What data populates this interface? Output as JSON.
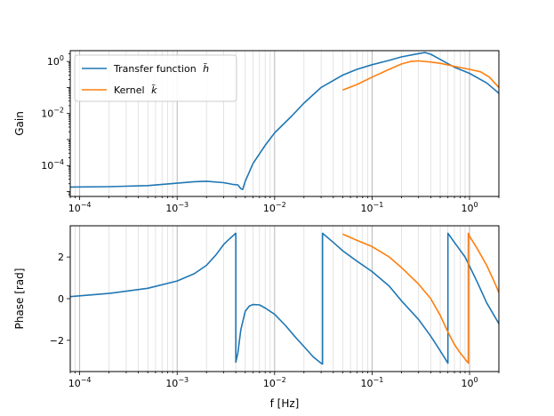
{
  "chart_data": [
    {
      "type": "line",
      "title": "",
      "xlabel": "",
      "ylabel": "Gain",
      "xscale": "log",
      "yscale": "log",
      "xlim": [
        8e-05,
        2.0
      ],
      "ylim": [
        6.5e-06,
        2.6
      ],
      "xticks": [
        {
          "value": 0.0001,
          "label": "10",
          "exp": "−4"
        },
        {
          "value": 0.001,
          "label": "10",
          "exp": "−3"
        },
        {
          "value": 0.01,
          "label": "10",
          "exp": "−2"
        },
        {
          "value": 0.1,
          "label": "10",
          "exp": "−1"
        },
        {
          "value": 1,
          "label": "10",
          "exp": "0"
        }
      ],
      "yticks": [
        {
          "value": 0.0001,
          "label": "10",
          "exp": "−4"
        },
        {
          "value": 0.01,
          "label": "10",
          "exp": "−2"
        },
        {
          "value": 1,
          "label": "10",
          "exp": "0"
        }
      ],
      "grid": "x-minor-and-major",
      "legend_position": "upper-left",
      "legend": [
        {
          "label": "Transfer function",
          "symbol": "h̃"
        },
        {
          "label": "Kernel",
          "symbol": "k̃"
        }
      ],
      "series": [
        {
          "name": "Transfer function h̃",
          "color": "#1f77b4",
          "x": [
            8e-05,
            0.0002,
            0.0005,
            0.001,
            0.0015,
            0.002,
            0.003,
            0.0037,
            0.0042,
            0.0045,
            0.0047,
            0.005,
            0.006,
            0.008,
            0.01,
            0.015,
            0.02,
            0.03,
            0.05,
            0.07,
            0.1,
            0.15,
            0.2,
            0.3,
            0.35,
            0.4,
            0.5,
            0.7,
            1.0,
            1.5,
            2.0
          ],
          "y": [
            1.5e-05,
            1.55e-05,
            1.7e-05,
            2.1e-05,
            2.4e-05,
            2.5e-05,
            2.2e-05,
            1.9e-05,
            1.8e-05,
            1.3e-05,
            1.2e-05,
            2.5e-05,
            0.00012,
            0.0006,
            0.0018,
            0.008,
            0.025,
            0.1,
            0.3,
            0.5,
            0.75,
            1.1,
            1.5,
            2.0,
            2.2,
            1.9,
            1.2,
            0.6,
            0.35,
            0.15,
            0.06
          ]
        },
        {
          "name": "Kernel k̃",
          "color": "#ff7f0e",
          "x": [
            0.05,
            0.07,
            0.1,
            0.15,
            0.2,
            0.25,
            0.3,
            0.4,
            0.5,
            0.7,
            1.0,
            1.3,
            1.6,
            2.0
          ],
          "y": [
            0.08,
            0.13,
            0.25,
            0.5,
            0.8,
            1.0,
            1.05,
            0.95,
            0.85,
            0.65,
            0.5,
            0.4,
            0.25,
            0.1
          ]
        }
      ]
    },
    {
      "type": "line",
      "title": "",
      "xlabel": "f [Hz]",
      "ylabel": "Phase [rad]",
      "xscale": "log",
      "yscale": "linear",
      "xlim": [
        8e-05,
        2.0
      ],
      "ylim": [
        -3.5,
        3.5
      ],
      "xticks": [
        {
          "value": 0.0001,
          "label": "10",
          "exp": "−4"
        },
        {
          "value": 0.001,
          "label": "10",
          "exp": "−3"
        },
        {
          "value": 0.01,
          "label": "10",
          "exp": "−2"
        },
        {
          "value": 0.1,
          "label": "10",
          "exp": "−1"
        },
        {
          "value": 1,
          "label": "10",
          "exp": "0"
        }
      ],
      "yticks": [
        {
          "value": -2,
          "label": "−2"
        },
        {
          "value": 0,
          "label": "0"
        },
        {
          "value": 2,
          "label": "2"
        }
      ],
      "grid": "x-minor-and-major",
      "series": [
        {
          "name": "Transfer function h̃",
          "color": "#1f77b4",
          "x": [
            8e-05,
            0.0002,
            0.0005,
            0.001,
            0.0015,
            0.002,
            0.0025,
            0.003,
            0.0035,
            0.004,
            0.004,
            0.0042,
            0.0045,
            0.005,
            0.0055,
            0.006,
            0.007,
            0.008,
            0.01,
            0.013,
            0.016,
            0.02,
            0.025,
            0.03,
            0.031,
            0.031,
            0.04,
            0.05,
            0.07,
            0.1,
            0.15,
            0.2,
            0.3,
            0.4,
            0.5,
            0.6,
            0.6,
            0.7,
            0.9,
            1.2,
            1.5,
            2.0
          ],
          "y": [
            0.1,
            0.25,
            0.5,
            0.85,
            1.2,
            1.6,
            2.1,
            2.6,
            2.9,
            3.14,
            -3.05,
            -2.6,
            -1.5,
            -0.6,
            -0.35,
            -0.28,
            -0.3,
            -0.45,
            -0.75,
            -1.3,
            -1.8,
            -2.3,
            -2.8,
            -3.1,
            -3.14,
            3.14,
            2.7,
            2.3,
            1.8,
            1.3,
            0.6,
            -0.1,
            -1.0,
            -1.8,
            -2.5,
            -3.1,
            3.14,
            2.7,
            2.0,
            0.8,
            -0.2,
            -1.2
          ]
        },
        {
          "name": "Kernel k̃",
          "color": "#ff7f0e",
          "x": [
            0.05,
            0.07,
            0.1,
            0.15,
            0.2,
            0.3,
            0.4,
            0.5,
            0.6,
            0.7,
            0.8,
            0.9,
            0.97,
            0.97,
            1.0,
            1.2,
            1.5,
            1.8,
            2.0
          ],
          "y": [
            3.1,
            2.8,
            2.5,
            2.0,
            1.5,
            0.7,
            0.0,
            -0.8,
            -1.6,
            -2.2,
            -2.6,
            -2.9,
            -3.1,
            3.14,
            3.0,
            2.4,
            1.6,
            0.8,
            0.3
          ]
        }
      ]
    }
  ]
}
